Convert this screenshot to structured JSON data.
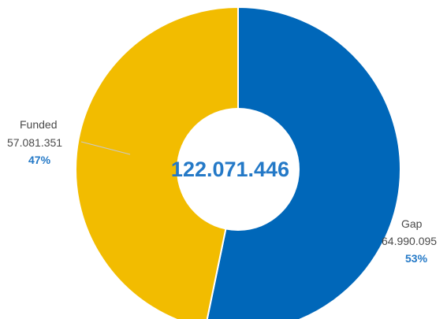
{
  "chart_data": {
    "type": "pie",
    "donut": true,
    "total_label": "122.071.446",
    "categories": [
      "Gap",
      "Funded"
    ],
    "values": [
      64990095,
      57081351
    ],
    "value_labels": [
      "64.990.095",
      "57.081.351"
    ],
    "percent_labels": [
      "53%",
      "47%"
    ],
    "colors": [
      "#0067b9",
      "#f2bc00"
    ],
    "start_position": "top",
    "direction": "clockwise"
  },
  "colors": {
    "accent": "#2479c7",
    "label_text": "#4a4a4a"
  }
}
